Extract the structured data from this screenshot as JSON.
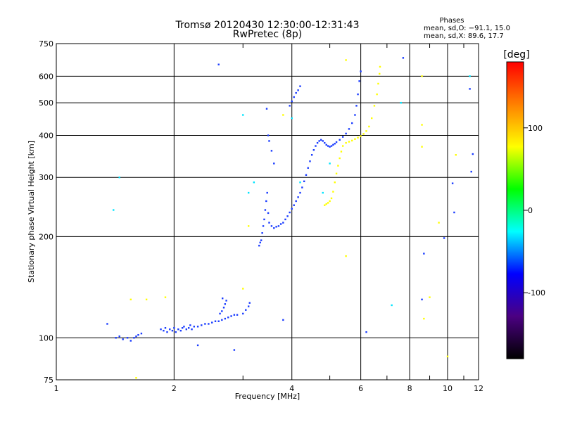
{
  "chart_data": {
    "type": "scatter",
    "title": "Tromsø 20120430 12:30:00-12:31:43",
    "subtitle": "RwPretec (8p)",
    "xlabel": "Frequency [MHz]",
    "ylabel": "Stationary phase Virtual Height [km]",
    "xscale": "log",
    "yscale": "log",
    "xlim": [
      1,
      12
    ],
    "ylim": [
      75,
      750
    ],
    "xticks": [
      1,
      2,
      4,
      6,
      8,
      10,
      12
    ],
    "yticks": [
      75,
      100,
      200,
      300,
      400,
      500,
      600,
      750
    ],
    "grid": true,
    "phases": {
      "heading": "Phases",
      "line_o": "mean, sd,O: −91.1, 15.0",
      "line_x": "mean, sd,X:  89.6, 17.7"
    },
    "colorbar": {
      "label": "[deg]",
      "ticks": [
        100,
        0,
        -100
      ],
      "range": [
        -180,
        180
      ],
      "colors": [
        "#000000",
        "#4b0082",
        "#0000ff",
        "#00ffff",
        "#00ff00",
        "#ffff00",
        "#ff8000",
        "#ff0000"
      ]
    },
    "series": [
      {
        "points": [
          [
            1.42,
            100
          ],
          [
            1.45,
            101
          ],
          [
            1.48,
            99
          ],
          [
            1.52,
            100
          ],
          [
            1.55,
            98
          ],
          [
            1.58,
            100
          ],
          [
            1.6,
            101
          ],
          [
            1.62,
            102
          ],
          [
            1.65,
            103
          ],
          [
            1.85,
            106
          ],
          [
            1.88,
            105
          ],
          [
            1.9,
            107
          ],
          [
            1.92,
            104
          ],
          [
            1.95,
            106
          ],
          [
            1.98,
            105
          ],
          [
            2.0,
            107
          ],
          [
            2.02,
            104
          ],
          [
            2.05,
            106
          ],
          [
            2.08,
            105
          ],
          [
            2.1,
            107
          ],
          [
            2.12,
            108
          ],
          [
            2.15,
            106
          ],
          [
            2.18,
            107
          ],
          [
            2.2,
            109
          ],
          [
            2.22,
            106
          ],
          [
            2.25,
            108
          ],
          [
            2.3,
            108
          ],
          [
            2.35,
            109
          ],
          [
            2.4,
            110
          ],
          [
            2.45,
            110
          ],
          [
            2.5,
            111
          ],
          [
            2.55,
            112
          ],
          [
            2.6,
            112
          ],
          [
            2.65,
            113
          ],
          [
            2.7,
            114
          ],
          [
            2.75,
            115
          ],
          [
            2.8,
            116
          ],
          [
            2.85,
            117
          ],
          [
            2.9,
            117
          ],
          [
            2.62,
            118
          ],
          [
            2.65,
            120
          ],
          [
            2.68,
            123
          ],
          [
            2.7,
            126
          ],
          [
            2.72,
            129
          ],
          [
            2.66,
            131
          ],
          [
            3.0,
            118
          ],
          [
            3.05,
            121
          ],
          [
            3.1,
            124
          ],
          [
            3.12,
            127
          ],
          [
            3.3,
            188
          ],
          [
            3.32,
            192
          ],
          [
            3.34,
            195
          ],
          [
            3.36,
            205
          ],
          [
            3.38,
            215
          ],
          [
            3.4,
            225
          ],
          [
            3.42,
            240
          ],
          [
            3.44,
            255
          ],
          [
            3.46,
            270
          ],
          [
            3.45,
            480
          ],
          [
            3.48,
            235
          ],
          [
            3.5,
            220
          ],
          [
            3.55,
            215
          ],
          [
            3.6,
            212
          ],
          [
            3.65,
            214
          ],
          [
            3.7,
            215
          ],
          [
            3.75,
            218
          ],
          [
            3.8,
            220
          ],
          [
            3.85,
            225
          ],
          [
            3.9,
            230
          ],
          [
            3.95,
            236
          ],
          [
            4.0,
            242
          ],
          [
            4.05,
            248
          ],
          [
            4.1,
            255
          ],
          [
            4.15,
            262
          ],
          [
            4.2,
            270
          ],
          [
            4.25,
            280
          ],
          [
            4.3,
            292
          ],
          [
            4.35,
            305
          ],
          [
            4.4,
            320
          ],
          [
            4.45,
            335
          ],
          [
            4.5,
            350
          ],
          [
            4.55,
            362
          ],
          [
            4.6,
            372
          ],
          [
            4.65,
            380
          ],
          [
            4.7,
            385
          ],
          [
            4.75,
            388
          ],
          [
            4.8,
            385
          ],
          [
            4.85,
            380
          ],
          [
            4.9,
            375
          ],
          [
            4.95,
            372
          ],
          [
            5.0,
            370
          ],
          [
            5.05,
            372
          ],
          [
            5.1,
            375
          ],
          [
            5.15,
            378
          ],
          [
            5.2,
            382
          ],
          [
            5.3,
            388
          ],
          [
            5.4,
            396
          ],
          [
            5.5,
            405
          ],
          [
            5.6,
            418
          ],
          [
            5.7,
            435
          ],
          [
            5.8,
            460
          ],
          [
            5.85,
            490
          ],
          [
            5.9,
            530
          ],
          [
            5.95,
            580
          ],
          [
            6.0,
            620
          ],
          [
            3.6,
            330
          ],
          [
            3.55,
            360
          ],
          [
            3.5,
            385
          ],
          [
            3.48,
            400
          ],
          [
            3.95,
            490
          ],
          [
            4.0,
            505
          ],
          [
            4.05,
            520
          ],
          [
            4.1,
            535
          ],
          [
            4.15,
            545
          ],
          [
            4.2,
            560
          ],
          [
            1.35,
            110
          ],
          [
            2.3,
            95
          ],
          [
            2.85,
            92
          ],
          [
            3.8,
            113
          ],
          [
            6.2,
            104
          ],
          [
            10.3,
            288
          ],
          [
            10.4,
            236
          ],
          [
            11.5,
            312
          ],
          [
            11.6,
            352
          ],
          [
            8.6,
            130
          ],
          [
            8.7,
            178
          ],
          [
            2.6,
            650
          ],
          [
            7.7,
            680
          ],
          [
            11.4,
            550
          ],
          [
            9.8,
            198
          ]
        ]
      },
      {
        "points": [
          [
            4.85,
            248
          ],
          [
            4.9,
            250
          ],
          [
            4.95,
            252
          ],
          [
            5.0,
            255
          ],
          [
            5.05,
            260
          ],
          [
            5.1,
            272
          ],
          [
            5.15,
            290
          ],
          [
            5.2,
            308
          ],
          [
            5.25,
            325
          ],
          [
            5.3,
            342
          ],
          [
            5.35,
            358
          ],
          [
            5.4,
            372
          ],
          [
            5.5,
            380
          ],
          [
            5.6,
            383
          ],
          [
            5.7,
            386
          ],
          [
            5.8,
            390
          ],
          [
            5.9,
            394
          ],
          [
            6.0,
            398
          ],
          [
            6.1,
            404
          ],
          [
            6.2,
            412
          ],
          [
            6.3,
            425
          ],
          [
            6.4,
            450
          ],
          [
            6.5,
            490
          ],
          [
            6.6,
            530
          ],
          [
            6.65,
            570
          ],
          [
            6.7,
            610
          ],
          [
            6.72,
            640
          ],
          [
            1.6,
            76
          ],
          [
            3.0,
            140
          ],
          [
            3.1,
            215
          ],
          [
            8.6,
            600
          ],
          [
            8.6,
            430
          ],
          [
            8.6,
            370
          ],
          [
            8.7,
            114
          ],
          [
            9.0,
            132
          ],
          [
            10.0,
            88
          ],
          [
            1.7,
            130
          ],
          [
            10.5,
            350
          ],
          [
            9.5,
            220
          ],
          [
            5.5,
            175
          ],
          [
            1.9,
            132
          ],
          [
            1.55,
            130
          ],
          [
            5.5,
            670
          ],
          [
            3.8,
            460
          ]
        ]
      },
      {
        "points": [
          [
            1.4,
            240
          ],
          [
            1.45,
            300
          ],
          [
            3.0,
            460
          ],
          [
            3.1,
            270
          ],
          [
            3.2,
            290
          ],
          [
            7.2,
            125
          ],
          [
            4.8,
            270
          ],
          [
            4.2,
            290
          ],
          [
            5.0,
            330
          ],
          [
            11.4,
            600
          ],
          [
            7.6,
            500
          ],
          [
            4.0,
            450
          ]
        ]
      }
    ]
  }
}
